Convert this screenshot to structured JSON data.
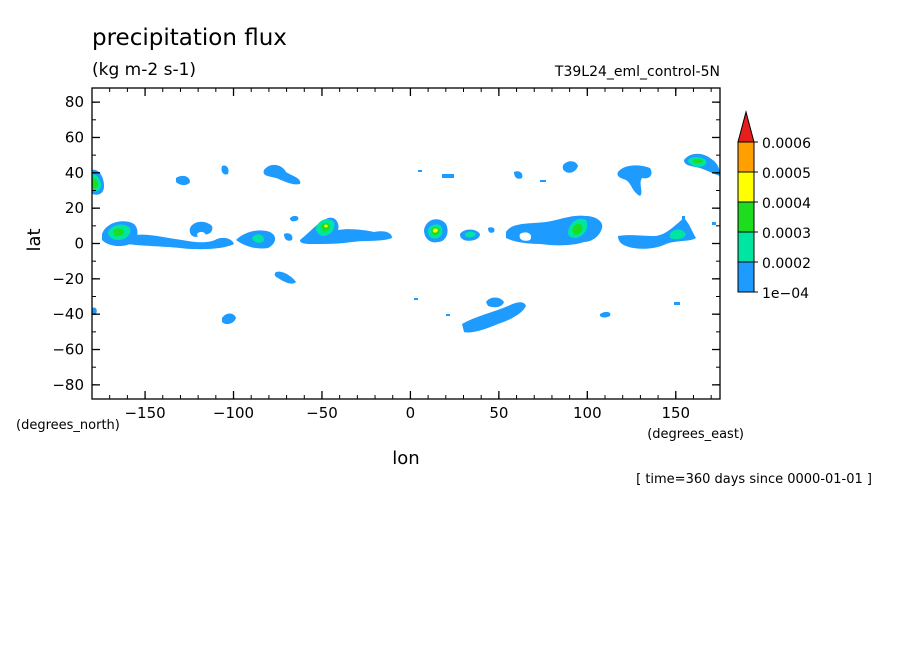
{
  "chart_data": {
    "type": "contour",
    "title": "precipitation flux",
    "units": "(kg m-2 s-1)",
    "dataset": "T39L24_eml_control-5N",
    "xlabel": "lon",
    "ylabel": "lat",
    "xunits": "(degrees_east)",
    "yunits": "(degrees_north)",
    "footer": "[ time=360 days since 0000-01-01 ]",
    "xlim": [
      -180,
      175
    ],
    "ylim": [
      -88,
      88
    ],
    "x_ticks": [
      -150,
      -100,
      -50,
      0,
      50,
      100,
      150
    ],
    "x_tick_labels": [
      "−150",
      "−100",
      "−50",
      "0",
      "50",
      "100",
      "150"
    ],
    "y_ticks": [
      80,
      60,
      40,
      20,
      0,
      -20,
      -40,
      -60,
      -80
    ],
    "y_tick_labels": [
      "80",
      "60",
      "40",
      "20",
      "0",
      "−20",
      "−40",
      "−60",
      "−80"
    ],
    "colorbar": {
      "levels": [
        0.0001,
        0.0002,
        0.0003,
        0.0004,
        0.0005,
        0.0006
      ],
      "labels": [
        "1e−04",
        "0.0002",
        "0.0003",
        "0.0004",
        "0.0005",
        "0.0006"
      ],
      "colors": [
        "#1e9bff",
        "#00e6a0",
        "#1edc1e",
        "#ffff00",
        "#ffa000",
        "#e61e1e"
      ],
      "extend": "max"
    },
    "regions": [
      {
        "lon": [
          -180,
          -172
        ],
        "lat": [
          28,
          42
        ],
        "levels": [
          0.0001,
          0.0003,
          0.0004
        ]
      },
      {
        "lon": [
          -176,
          -156
        ],
        "lat": [
          0,
          12
        ],
        "levels": [
          0.0001,
          0.0003,
          0.0004
        ]
      },
      {
        "lon": [
          -160,
          -120
        ],
        "lat": [
          -5,
          6
        ],
        "levels": [
          0.0001
        ]
      },
      {
        "lon": [
          -122,
          -110
        ],
        "lat": [
          0,
          12
        ],
        "levels": [
          0.0001,
          0.0002
        ]
      },
      {
        "lon": [
          -95,
          -75
        ],
        "lat": [
          -2,
          8
        ],
        "levels": [
          0.0001,
          0.0003
        ]
      },
      {
        "lon": [
          -58,
          -40
        ],
        "lat": [
          -2,
          16
        ],
        "levels": [
          0.0001,
          0.0003,
          0.0004
        ]
      },
      {
        "lon": [
          -70,
          -10
        ],
        "lat": [
          -3,
          8
        ],
        "levels": [
          0.0001
        ]
      },
      {
        "lon": [
          8,
          24
        ],
        "lat": [
          -1,
          11
        ],
        "levels": [
          0.0001,
          0.0003,
          0.0004,
          0.0005
        ]
      },
      {
        "lon": [
          30,
          42
        ],
        "lat": [
          0,
          6
        ],
        "levels": [
          0.0001,
          0.0002
        ]
      },
      {
        "lon": [
          55,
          110
        ],
        "lat": [
          -3,
          15
        ],
        "levels": [
          0.0001,
          0.0003,
          0.0004
        ]
      },
      {
        "lon": [
          120,
          170
        ],
        "lat": [
          -4,
          7
        ],
        "levels": [
          0.0001,
          0.0003
        ]
      },
      {
        "lon": [
          158,
          175
        ],
        "lat": [
          38,
          48
        ],
        "levels": [
          0.0001,
          0.0003,
          0.0004
        ]
      },
      {
        "lon": [
          -78,
          -65
        ],
        "lat": [
          36,
          44
        ],
        "levels": [
          0.0001
        ]
      },
      {
        "lon": [
          118,
          138
        ],
        "lat": [
          24,
          40
        ],
        "levels": [
          0.0001
        ]
      },
      {
        "lon": [
          -130,
          -120
        ],
        "lat": [
          32,
          37
        ],
        "levels": [
          0.0001
        ]
      },
      {
        "lon": [
          30,
          65
        ],
        "lat": [
          -50,
          -30
        ],
        "levels": [
          0.0001
        ]
      },
      {
        "lon": [
          -105,
          -98
        ],
        "lat": [
          -45,
          -40
        ],
        "levels": [
          0.0001
        ]
      },
      {
        "lon": [
          -72,
          -64
        ],
        "lat": [
          -25,
          -18
        ],
        "levels": [
          0.0001
        ]
      },
      {
        "lon": [
          -182,
          -177
        ],
        "lat": [
          -40,
          -36
        ],
        "levels": [
          0.0001
        ]
      }
    ]
  }
}
